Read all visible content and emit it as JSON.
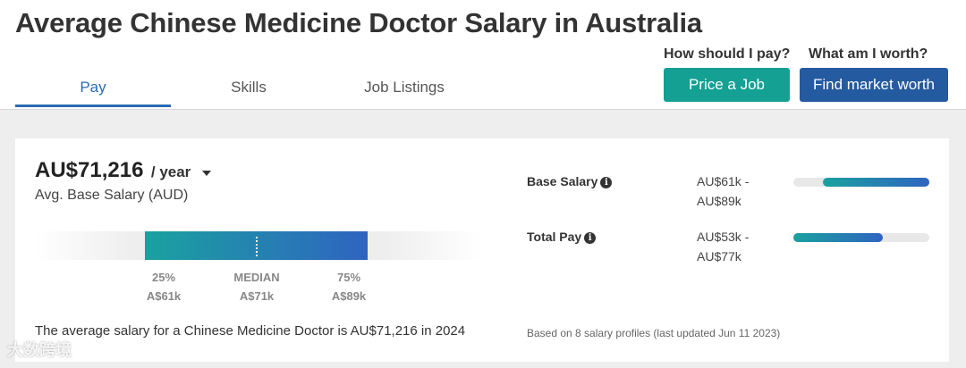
{
  "page": {
    "title": "Average Chinese Medicine Doctor Salary in Australia"
  },
  "tabs": [
    {
      "label": "Pay",
      "active": true
    },
    {
      "label": "Skills",
      "active": false
    },
    {
      "label": "Job Listings",
      "active": false
    }
  ],
  "cta": {
    "price_question": "How should I pay?",
    "price_button": "Price a Job",
    "worth_question": "What am I worth?",
    "worth_button": "Find market worth"
  },
  "colors": {
    "accent_blue": "#2a6bb3",
    "teal": "#14a092",
    "navy": "#245aa0",
    "bar_start": "#1aa1a0",
    "bar_end": "#2f64c0"
  },
  "salary": {
    "amount": "AU$71,216",
    "period": "/ year",
    "subtitle": "Avg. Base Salary (AUD)",
    "percentiles": [
      {
        "label": "25%",
        "value": "A$61k"
      },
      {
        "label": "MEDIAN",
        "value": "A$71k"
      },
      {
        "label": "75%",
        "value": "A$89k"
      }
    ],
    "summary": "The average salary for a Chinese Medicine Doctor is AU$71,216 in 2024"
  },
  "pay_rows": [
    {
      "label": "Base Salary",
      "icon": "info-icon",
      "range_low": "AU$61k -",
      "range_high": "AU$89k",
      "fill_start": 0.22,
      "fill_end": 1.0
    },
    {
      "label": "Total Pay",
      "icon": "info-icon",
      "range_low": "AU$53k -",
      "range_high": "AU$77k",
      "fill_start": 0.0,
      "fill_end": 0.66
    }
  ],
  "footnote": "Based on 8 salary profiles (last updated Jun 11 2023)",
  "watermark": "大数跨境"
}
